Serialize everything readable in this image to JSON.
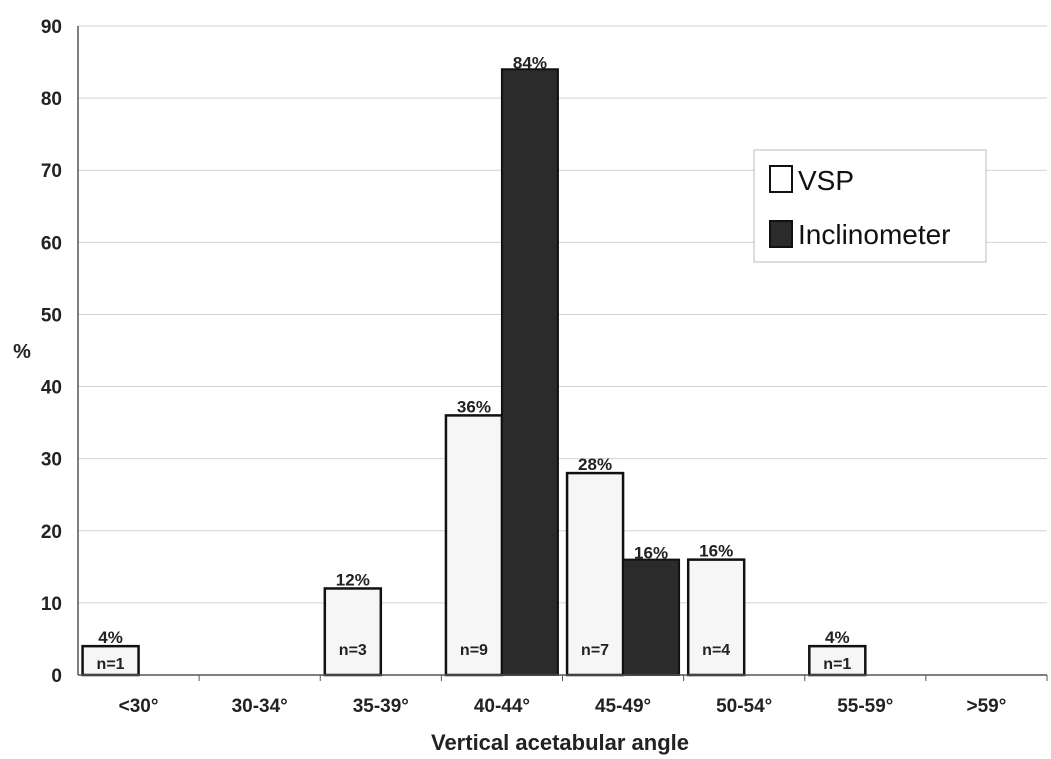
{
  "chart_data": {
    "type": "bar",
    "title": "",
    "xlabel": "Vertical acetabular angle",
    "ylabel": "%",
    "ylim": [
      0,
      90
    ],
    "yticks": [
      0,
      10,
      20,
      30,
      40,
      50,
      60,
      70,
      80,
      90
    ],
    "grid": true,
    "legend_position": "top-right",
    "categories": [
      "<30°",
      "30-34°",
      "35-39°",
      "40-44°",
      "45-49°",
      "50-54°",
      "55-59°",
      ">59°"
    ],
    "series": [
      {
        "name": "VSP",
        "color": "#f6f6f6",
        "values": [
          4,
          0,
          12,
          36,
          28,
          16,
          4,
          0
        ],
        "labels": [
          "4%",
          "",
          "12%",
          "36%",
          "28%",
          "16%",
          "4%",
          ""
        ],
        "counts": [
          "n=1",
          "",
          "n=3",
          "n=9",
          "n=7",
          "n=4",
          "n=1",
          ""
        ]
      },
      {
        "name": "Inclinometer",
        "color": "#2b2b2b",
        "values": [
          0,
          0,
          0,
          84,
          16,
          0,
          0,
          0
        ],
        "labels": [
          "",
          "",
          "",
          "84%",
          "16%",
          "",
          "",
          ""
        ],
        "counts": [
          "",
          "",
          "",
          "",
          "",
          "",
          "",
          ""
        ]
      }
    ]
  }
}
